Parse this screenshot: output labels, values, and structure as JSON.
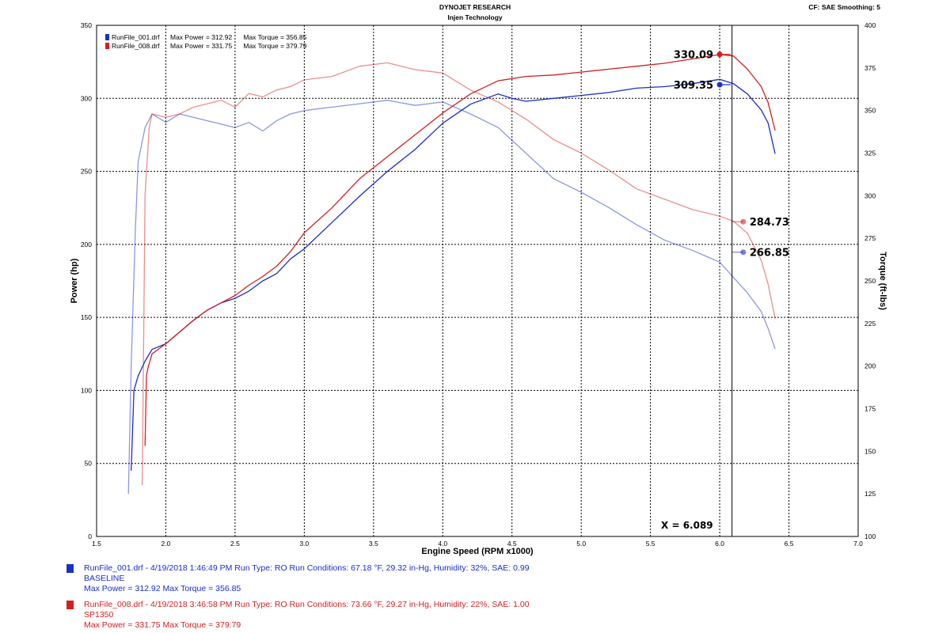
{
  "header": {
    "line1": "DYNOJET RESEARCH",
    "line2": "Injen Technology",
    "right": "CF: SAE  Smoothing: 5"
  },
  "legend": [
    {
      "file": "RunFile_001.drf",
      "stats": "Max Power = 312.92      Max Torque = 356.85",
      "color": "#1a2fc9"
    },
    {
      "file": "RunFile_008.drf",
      "stats": "Max Power = 331.75      Max Torque = 379.79",
      "color": "#d41f1f"
    }
  ],
  "footer": {
    "run1": {
      "line1": "RunFile_001.drf - 4/19/2018 1:46:49 PM  Run Type: RO  Run Conditions: 67.18 °F, 29.32 in-Hg,  Humidity:  32%,  SAE: 0.99",
      "line2": "BASELINE",
      "line3": "Max Power = 312.92  Max Torque = 356.85"
    },
    "run2": {
      "line1": "RunFile_008.drf - 4/19/2018 3:46:58 PM  Run Type: RO  Run Conditions: 73.66 °F, 29.27 in-Hg,  Humidity:  22%,  SAE: 1.00",
      "line2": "SP1350",
      "line3": "Max Power = 331.75  Max Torque = 379.79"
    }
  },
  "chart_data": {
    "type": "line",
    "xlabel": "Engine Speed (RPM x1000)",
    "ylabel": "Power (hp)",
    "y2label": "Torque (ft-lbs)",
    "xlim": [
      1.5,
      7.0
    ],
    "ylim": [
      0,
      350
    ],
    "y2lim": [
      100,
      400
    ],
    "xticks": [
      "1.5",
      "2.0",
      "2.5",
      "3.0",
      "3.5",
      "4.0",
      "4.5",
      "5.0",
      "5.5",
      "6.0",
      "6.5",
      "7.0"
    ],
    "yticks": [
      "0",
      "50",
      "100",
      "150",
      "200",
      "250",
      "300",
      "350"
    ],
    "y2ticks": [
      "100",
      "125",
      "150",
      "175",
      "200",
      "225",
      "250",
      "275",
      "300",
      "325",
      "350",
      "375",
      "400"
    ],
    "grid": true,
    "cursor": {
      "x": 6.089,
      "label": "X = 6.089"
    },
    "markers": [
      {
        "series": "power_008",
        "x": 6.0,
        "y": 330.09,
        "label": "330.09"
      },
      {
        "series": "power_001",
        "x": 6.0,
        "y": 309.35,
        "label": "309.35"
      },
      {
        "series": "torque_008",
        "x": 6.17,
        "y": 284.73,
        "label": "284.73",
        "axis": "y2"
      },
      {
        "series": "torque_001",
        "x": 6.17,
        "y": 266.85,
        "label": "266.85",
        "axis": "y2"
      }
    ],
    "series": [
      {
        "key": "power_001",
        "axis": "y",
        "color": "#1a2fc9",
        "opacity": 1.0,
        "x": [
          1.75,
          1.77,
          1.8,
          1.85,
          1.9,
          2.0,
          2.1,
          2.2,
          2.3,
          2.4,
          2.5,
          2.6,
          2.7,
          2.8,
          2.9,
          3.0,
          3.2,
          3.4,
          3.6,
          3.8,
          4.0,
          4.2,
          4.4,
          4.5,
          4.6,
          4.8,
          5.0,
          5.2,
          5.4,
          5.6,
          5.8,
          6.0,
          6.1,
          6.2,
          6.3,
          6.35,
          6.4
        ],
        "y": [
          45,
          100,
          110,
          120,
          128,
          132,
          140,
          148,
          155,
          160,
          163,
          168,
          175,
          180,
          190,
          197,
          215,
          233,
          250,
          265,
          283,
          296,
          303,
          300,
          298,
          300,
          302,
          304,
          307,
          308,
          310,
          313,
          310,
          303,
          292,
          283,
          262
        ]
      },
      {
        "key": "power_008",
        "axis": "y",
        "color": "#d41f1f",
        "opacity": 1.0,
        "x": [
          1.85,
          1.86,
          1.87,
          1.9,
          2.0,
          2.1,
          2.2,
          2.3,
          2.4,
          2.5,
          2.6,
          2.7,
          2.8,
          2.9,
          3.0,
          3.2,
          3.4,
          3.6,
          3.8,
          4.0,
          4.2,
          4.4,
          4.6,
          4.8,
          5.0,
          5.2,
          5.4,
          5.6,
          5.8,
          6.0,
          6.1,
          6.2,
          6.3,
          6.35,
          6.4
        ],
        "y": [
          62,
          110,
          115,
          125,
          132,
          140,
          148,
          155,
          160,
          165,
          172,
          178,
          185,
          195,
          208,
          225,
          245,
          260,
          275,
          290,
          303,
          312,
          315,
          316,
          318,
          320,
          322,
          324,
          327,
          330,
          329,
          320,
          308,
          297,
          278
        ]
      },
      {
        "key": "torque_001",
        "axis": "y2",
        "color": "#1a2fc9",
        "opacity": 0.5,
        "x": [
          1.73,
          1.75,
          1.78,
          1.8,
          1.85,
          1.9,
          2.0,
          2.1,
          2.2,
          2.3,
          2.4,
          2.5,
          2.6,
          2.7,
          2.8,
          2.9,
          3.0,
          3.2,
          3.4,
          3.6,
          3.8,
          4.0,
          4.2,
          4.4,
          4.6,
          4.8,
          5.0,
          5.2,
          5.4,
          5.6,
          5.8,
          6.0,
          6.1,
          6.2,
          6.3,
          6.35,
          6.4
        ],
        "y": [
          125,
          200,
          280,
          320,
          340,
          348,
          343,
          348,
          346,
          344,
          342,
          340,
          343,
          338,
          344,
          348,
          350,
          352,
          354,
          356,
          353,
          355,
          348,
          340,
          325,
          310,
          302,
          293,
          283,
          274,
          268,
          261,
          252,
          243,
          232,
          222,
          210
        ]
      },
      {
        "key": "torque_008",
        "axis": "y2",
        "color": "#d41f1f",
        "opacity": 0.5,
        "x": [
          1.83,
          1.85,
          1.88,
          1.9,
          2.0,
          2.1,
          2.2,
          2.3,
          2.4,
          2.5,
          2.6,
          2.7,
          2.8,
          2.9,
          3.0,
          3.2,
          3.4,
          3.6,
          3.8,
          4.0,
          4.2,
          4.4,
          4.6,
          4.8,
          5.0,
          5.2,
          5.4,
          5.6,
          5.8,
          6.0,
          6.1,
          6.2,
          6.3,
          6.35,
          6.4
        ],
        "y": [
          130,
          300,
          340,
          348,
          346,
          348,
          352,
          354,
          356,
          352,
          360,
          358,
          362,
          364,
          368,
          370,
          376,
          378,
          374,
          372,
          362,
          355,
          345,
          333,
          325,
          315,
          304,
          298,
          292,
          288,
          285,
          278,
          262,
          248,
          228
        ]
      }
    ]
  }
}
